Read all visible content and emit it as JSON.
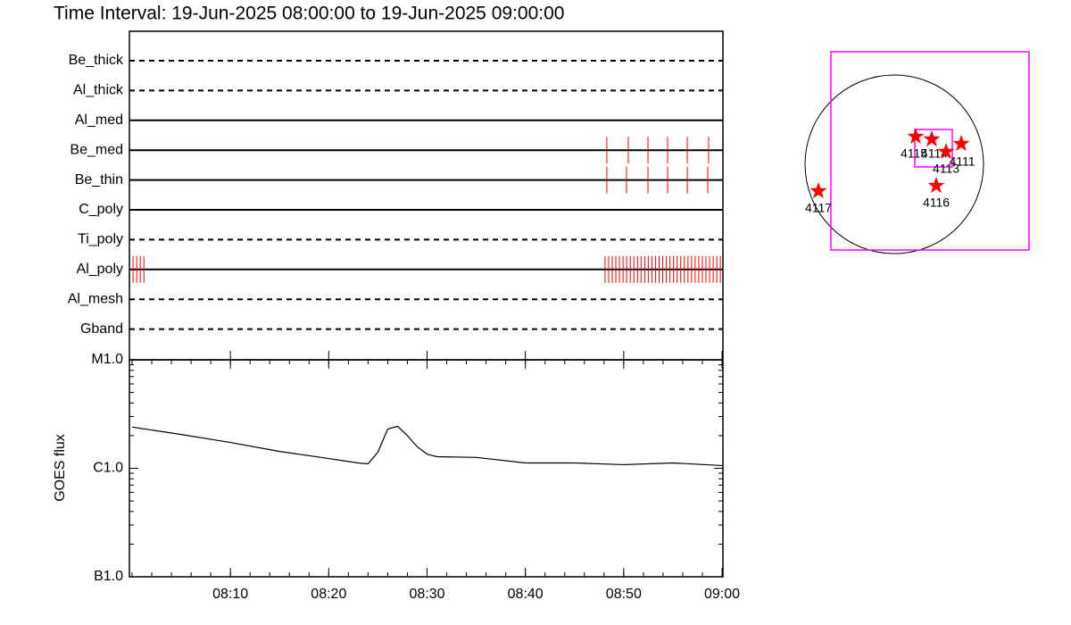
{
  "title": "Time Interval: 19-Jun-2025 08:00:00 to 19-Jun-2025 09:00:00",
  "chart_data": [
    {
      "type": "timeline",
      "xlim": [
        "08:00:00",
        "09:00:00"
      ],
      "color": "#ff0000",
      "rows": [
        {
          "name": "Be_thick",
          "linestyle": "dashed",
          "times": []
        },
        {
          "name": "Al_thick",
          "linestyle": "dashed",
          "times": []
        },
        {
          "name": "Al_med",
          "linestyle": "solid",
          "times": []
        },
        {
          "name": "Be_med",
          "linestyle": "solid",
          "times": [
            "08:48:17",
            "08:50:28",
            "08:52:28",
            "08:54:28",
            "08:56:28",
            "08:58:38"
          ]
        },
        {
          "name": "Be_thin",
          "linestyle": "solid",
          "times": [
            "08:48:17",
            "08:50:17",
            "08:52:28",
            "08:54:28",
            "08:56:28",
            "08:58:33"
          ]
        },
        {
          "name": "C_poly",
          "linestyle": "solid",
          "times": []
        },
        {
          "name": "Ti_poly",
          "linestyle": "dashed",
          "times": []
        },
        {
          "name": "Al_poly",
          "linestyle": "solid",
          "times": [
            "08:00:06",
            "08:00:28",
            "08:00:50",
            "08:01:12",
            "08:48:06",
            "08:48:28",
            "08:48:50",
            "08:49:12",
            "08:49:34",
            "08:49:56",
            "08:50:18",
            "08:50:40",
            "08:51:02",
            "08:51:24",
            "08:51:46",
            "08:52:08",
            "08:52:30",
            "08:52:52",
            "08:53:14",
            "08:53:36",
            "08:53:58",
            "08:54:20",
            "08:54:42",
            "08:55:04",
            "08:55:26",
            "08:55:48",
            "08:56:10",
            "08:56:32",
            "08:56:54",
            "08:57:16",
            "08:57:38",
            "08:58:00",
            "08:58:22",
            "08:58:44",
            "08:59:06",
            "08:59:28",
            "08:59:50"
          ]
        },
        {
          "name": "Al_mesh",
          "linestyle": "dashed",
          "times": []
        },
        {
          "name": "Gband",
          "linestyle": "dashed",
          "times": []
        }
      ]
    },
    {
      "type": "line",
      "ylabel": "GOES flux",
      "xlim": [
        "08:00:00",
        "09:00:00"
      ],
      "xticks": [
        "08:10",
        "08:20",
        "08:30",
        "08:40",
        "08:50",
        "09:00"
      ],
      "ylim": [
        1e-07,
        1e-05
      ],
      "log_scale": true,
      "yticks": [
        {
          "value": 1e-07,
          "label": "B1.0"
        },
        {
          "value": 1e-06,
          "label": "C1.0"
        },
        {
          "value": 1e-05,
          "label": "M1.0"
        }
      ],
      "color": "#000000",
      "x": [
        "08:00",
        "08:05",
        "08:10",
        "08:15",
        "08:20",
        "08:23",
        "08:24",
        "08:25",
        "08:26",
        "08:27",
        "08:28",
        "08:29",
        "08:30",
        "08:31",
        "08:35",
        "08:40",
        "08:45",
        "08:50",
        "08:55",
        "09:00"
      ],
      "values": [
        2.4e-06,
        2.05e-06,
        1.73e-06,
        1.43e-06,
        1.23e-06,
        1.12e-06,
        1.1e-06,
        1.41e-06,
        2.3e-06,
        2.44e-06,
        2e-06,
        1.58e-06,
        1.35e-06,
        1.28e-06,
        1.26e-06,
        1.12e-06,
        1.12e-06,
        1.08e-06,
        1.12e-06,
        1.06e-06
      ]
    }
  ],
  "map": {
    "color": "#ff0000",
    "active_regions": [
      "4115",
      "4114",
      "4113",
      "4111",
      "4116",
      "4117"
    ]
  }
}
